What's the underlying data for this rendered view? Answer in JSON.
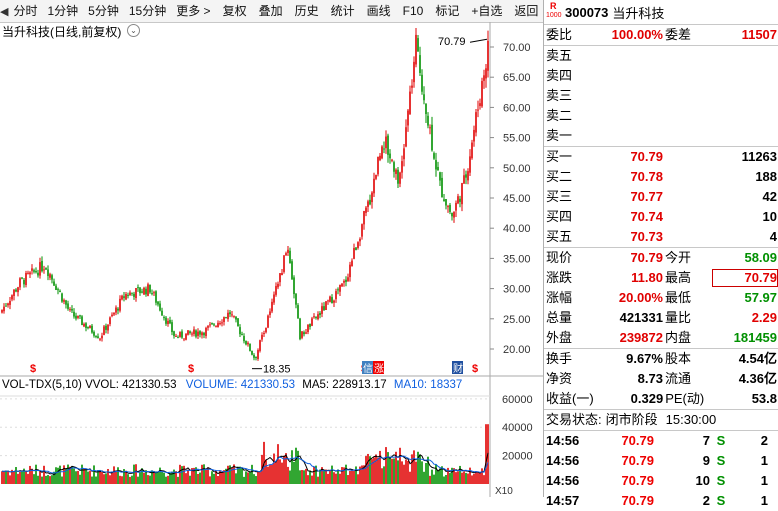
{
  "toolbar": {
    "buttons": [
      "分时",
      "1分钟",
      "5分钟",
      "15分钟",
      "更多 >",
      "复权",
      "叠加",
      "历史",
      "统计",
      "画线",
      "F10",
      "标记",
      "+自选",
      "返回"
    ]
  },
  "chart": {
    "title": "当升科技(日线,前复权)",
    "price_axis": [
      "70.00",
      "65.00",
      "60.00",
      "55.00",
      "50.00",
      "45.00",
      "40.00",
      "35.00",
      "30.00",
      "25.00",
      "20.00"
    ],
    "high_label": "70.79",
    "low_label": "18.35",
    "event_badges": [
      "$",
      "$",
      "$",
      "$"
    ],
    "tag_xin": "信",
    "tag_zhang": "涨",
    "tag_cai": "财"
  },
  "volume": {
    "legend": {
      "name": "VOL-TDX(5,10)",
      "vvol": "VVOL: 421330.53",
      "volume": "VOLUME: 421330.53",
      "ma5": "MA5: 228913.17",
      "ma10": "MA10: 18337"
    },
    "axis": [
      "60000",
      "40000",
      "20000"
    ],
    "unit": "X10"
  },
  "quote": {
    "code": "300073",
    "name": "当升科技",
    "badge_r": "R",
    "badge_n": "1000",
    "weibi_label": "委比",
    "weibi_value": "100.00%",
    "weicha_label": "委差",
    "weicha_value": "11507",
    "sells": [
      {
        "label": "卖五"
      },
      {
        "label": "卖四"
      },
      {
        "label": "卖三"
      },
      {
        "label": "卖二"
      },
      {
        "label": "卖一"
      }
    ],
    "buys": [
      {
        "label": "买一",
        "price": "70.79",
        "vol": "11263"
      },
      {
        "label": "买二",
        "price": "70.78",
        "vol": "188"
      },
      {
        "label": "买三",
        "price": "70.77",
        "vol": "42"
      },
      {
        "label": "买四",
        "price": "70.74",
        "vol": "10"
      },
      {
        "label": "买五",
        "price": "70.73",
        "vol": "4"
      }
    ],
    "stats": [
      {
        "l1": "现价",
        "v1": "70.79",
        "l2": "今开",
        "v2": "58.09",
        "c1": "red",
        "c2": "grn"
      },
      {
        "l1": "涨跌",
        "v1": "11.80",
        "l2": "最高",
        "v2": "70.79",
        "c1": "red",
        "c2": "red"
      },
      {
        "l1": "涨幅",
        "v1": "20.00%",
        "l2": "最低",
        "v2": "57.97",
        "c1": "red",
        "c2": "grn"
      },
      {
        "l1": "总量",
        "v1": "421331",
        "l2": "量比",
        "v2": "2.29",
        "c1": "",
        "c2": "red"
      },
      {
        "l1": "外盘",
        "v1": "239872",
        "l2": "内盘",
        "v2": "181459",
        "c1": "red",
        "c2": "grn"
      }
    ],
    "fund": [
      {
        "l1": "换手",
        "v1": "9.67%",
        "l2": "股本",
        "v2": "4.54亿"
      },
      {
        "l1": "净资",
        "v1": "8.73",
        "l2": "流通",
        "v2": "4.36亿"
      },
      {
        "l1": "收益(一)",
        "v1": "0.329",
        "l2": "PE(动)",
        "v2": "53.8"
      }
    ],
    "trade_status_label": "交易状态:",
    "trade_status_value": "闭市阶段",
    "trade_time": "15:30:00",
    "ticks": [
      {
        "time": "14:56",
        "price": "70.79",
        "vol": "7",
        "dir": "S",
        "num": "2"
      },
      {
        "time": "14:56",
        "price": "70.79",
        "vol": "9",
        "dir": "S",
        "num": "1"
      },
      {
        "time": "14:56",
        "price": "70.79",
        "vol": "10",
        "dir": "S",
        "num": "1"
      },
      {
        "time": "14:57",
        "price": "70.79",
        "vol": "2",
        "dir": "S",
        "num": "1"
      }
    ]
  },
  "colors": {
    "up": "#e00000",
    "down": "#009000",
    "ma5": "#000000",
    "ma10": "#1060e0"
  }
}
